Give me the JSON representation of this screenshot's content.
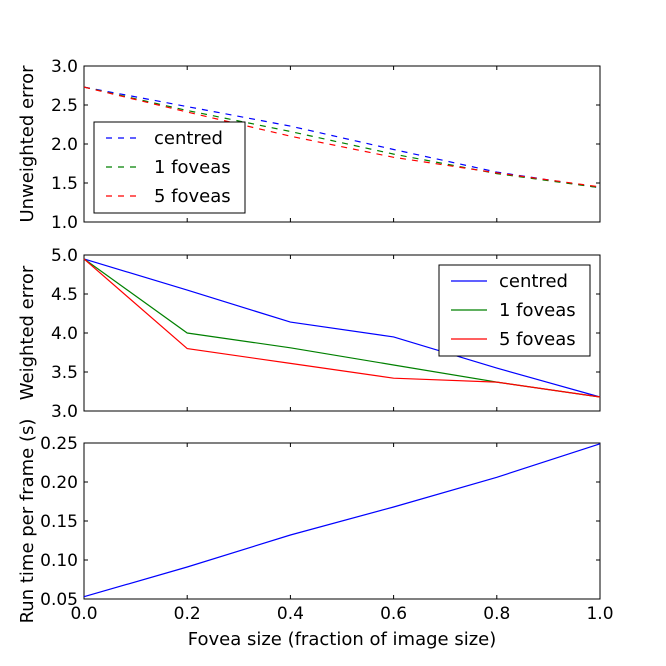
{
  "chart_data": [
    {
      "type": "line",
      "ylabel": "Unweighted error",
      "xlim": [
        0.0,
        1.0
      ],
      "ylim": [
        1.0,
        3.0
      ],
      "yticks": [
        "1.0",
        "1.5",
        "2.0",
        "2.5",
        "3.0"
      ],
      "show_xticklabels": false,
      "line_style": "dashed",
      "legend_position": "left",
      "x": [
        0.0,
        0.2,
        0.4,
        0.6,
        0.8,
        1.0
      ],
      "series": [
        {
          "name": "centred",
          "color": "#0000ff",
          "values": [
            2.73,
            2.48,
            2.23,
            1.93,
            1.64,
            1.44
          ]
        },
        {
          "name": "1 foveas",
          "color": "#008000",
          "values": [
            2.73,
            2.43,
            2.16,
            1.87,
            1.62,
            1.44
          ]
        },
        {
          "name": "5 foveas",
          "color": "#ff0000",
          "values": [
            2.73,
            2.41,
            2.1,
            1.83,
            1.63,
            1.45
          ]
        }
      ]
    },
    {
      "type": "line",
      "ylabel": "Weighted error",
      "xlim": [
        0.0,
        1.0
      ],
      "ylim": [
        3.0,
        5.0
      ],
      "yticks": [
        "3.0",
        "3.5",
        "4.0",
        "4.5",
        "5.0"
      ],
      "show_xticklabels": false,
      "line_style": "solid",
      "legend_position": "top-right",
      "x": [
        0.0,
        0.2,
        0.4,
        0.6,
        0.8,
        1.0
      ],
      "series": [
        {
          "name": "centred",
          "color": "#0000ff",
          "values": [
            4.95,
            4.55,
            4.14,
            3.95,
            3.55,
            3.18
          ]
        },
        {
          "name": "1 foveas",
          "color": "#008000",
          "values": [
            4.95,
            4.0,
            3.81,
            3.59,
            3.37,
            3.18
          ]
        },
        {
          "name": "5 foveas",
          "color": "#ff0000",
          "values": [
            4.95,
            3.8,
            3.61,
            3.42,
            3.37,
            3.18
          ]
        }
      ]
    },
    {
      "type": "line",
      "ylabel": "Run time per frame (s)",
      "xlabel": "Fovea size (fraction of image size)",
      "xlim": [
        0.0,
        1.0
      ],
      "ylim": [
        0.05,
        0.25
      ],
      "xticks": [
        "0.0",
        "0.2",
        "0.4",
        "0.6",
        "0.8",
        "1.0"
      ],
      "yticks": [
        "0.05",
        "0.10",
        "0.15",
        "0.20",
        "0.25"
      ],
      "show_xticklabels": true,
      "line_style": "solid",
      "x": [
        0.0,
        0.2,
        0.4,
        0.6,
        0.8,
        1.0
      ],
      "series": [
        {
          "color": "#0000ff",
          "values": [
            0.053,
            0.091,
            0.132,
            0.168,
            0.206,
            0.249
          ]
        }
      ]
    }
  ]
}
